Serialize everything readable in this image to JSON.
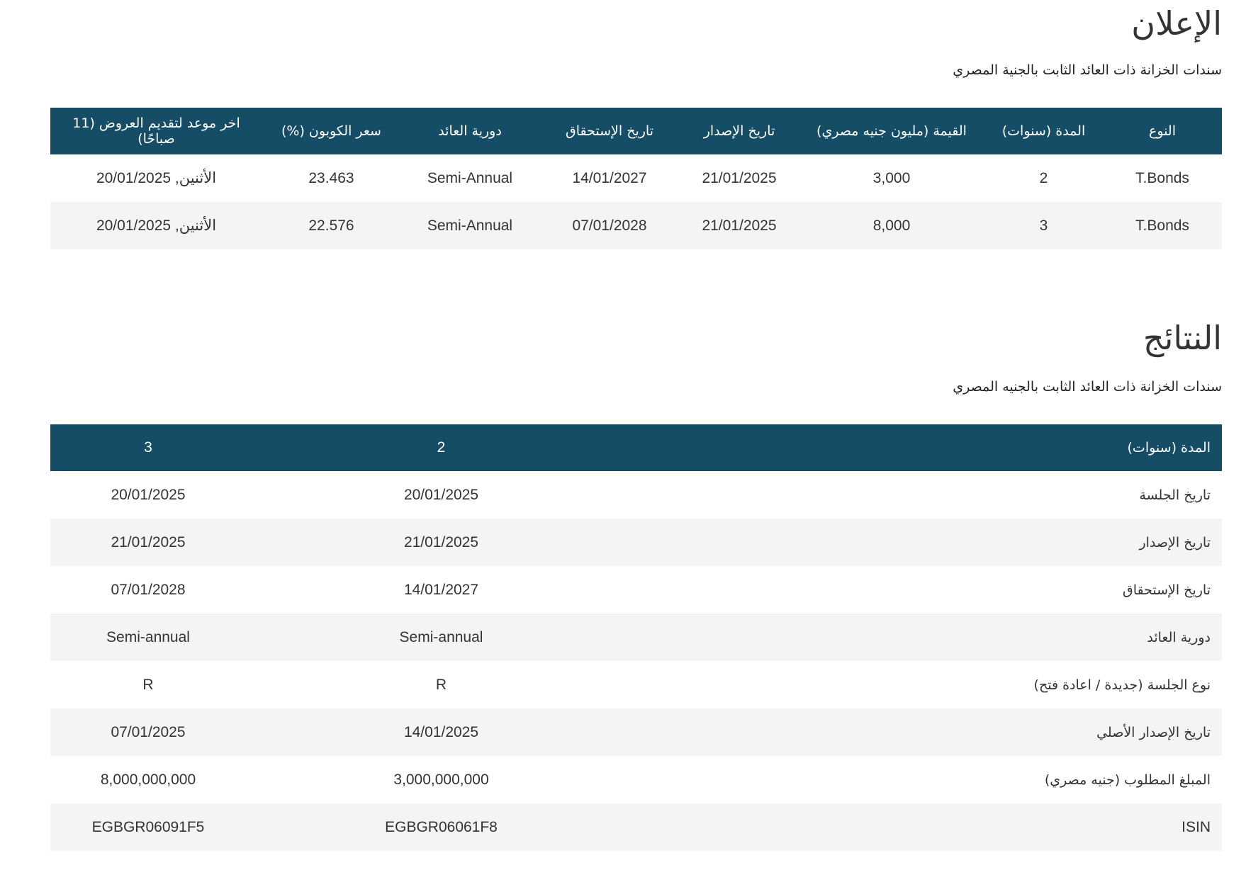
{
  "announcement": {
    "title": "الإعلان",
    "subtitle": "سندات الخزانة ذات العائد الثابت بالجنية المصري",
    "headers": [
      "النوع",
      "المدة (سنوات)",
      "القيمة (مليون جنيه مصري)",
      "تاريخ الإصدار",
      "تاريخ الإستحقاق",
      "دورية العائد",
      "سعر الكوبون (%)",
      "اخر موعد لتقديم العروض (11 صباحًا)"
    ],
    "rows": [
      [
        "T.Bonds",
        "2",
        "3,000",
        "21/01/2025",
        "14/01/2027",
        "Semi-Annual",
        "23.463",
        "الأثنين, 20/01/2025"
      ],
      [
        "T.Bonds",
        "3",
        "8,000",
        "21/01/2025",
        "07/01/2028",
        "Semi-Annual",
        "22.576",
        "الأثنين, 20/01/2025"
      ]
    ]
  },
  "results": {
    "title": "النتائج",
    "subtitle": "سندات الخزانة ذات العائد الثابت بالجنيه المصري",
    "headers": [
      "المدة (سنوات)",
      "2",
      "3"
    ],
    "rows": [
      [
        "تاريخ الجلسة",
        "20/01/2025",
        "20/01/2025"
      ],
      [
        "تاريخ الإصدار",
        "21/01/2025",
        "21/01/2025"
      ],
      [
        "تاريخ الإستحقاق",
        "14/01/2027",
        "07/01/2028"
      ],
      [
        "دورية العائد",
        "Semi-annual",
        "Semi-annual"
      ],
      [
        "نوع الجلسة (جديدة / اعادة فتح)",
        "R",
        "R"
      ],
      [
        "تاريخ الإصدار الأصلي",
        "14/01/2025",
        "07/01/2025"
      ],
      [
        "المبلغ المطلوب (جنيه مصري)",
        "3,000,000,000",
        "8,000,000,000"
      ],
      [
        "ISIN",
        "EGBGR06061F8",
        "EGBGR06091F5"
      ]
    ]
  },
  "colors": {
    "header_bg": "#154c66",
    "stripe_bg": "#f3f4f5"
  }
}
